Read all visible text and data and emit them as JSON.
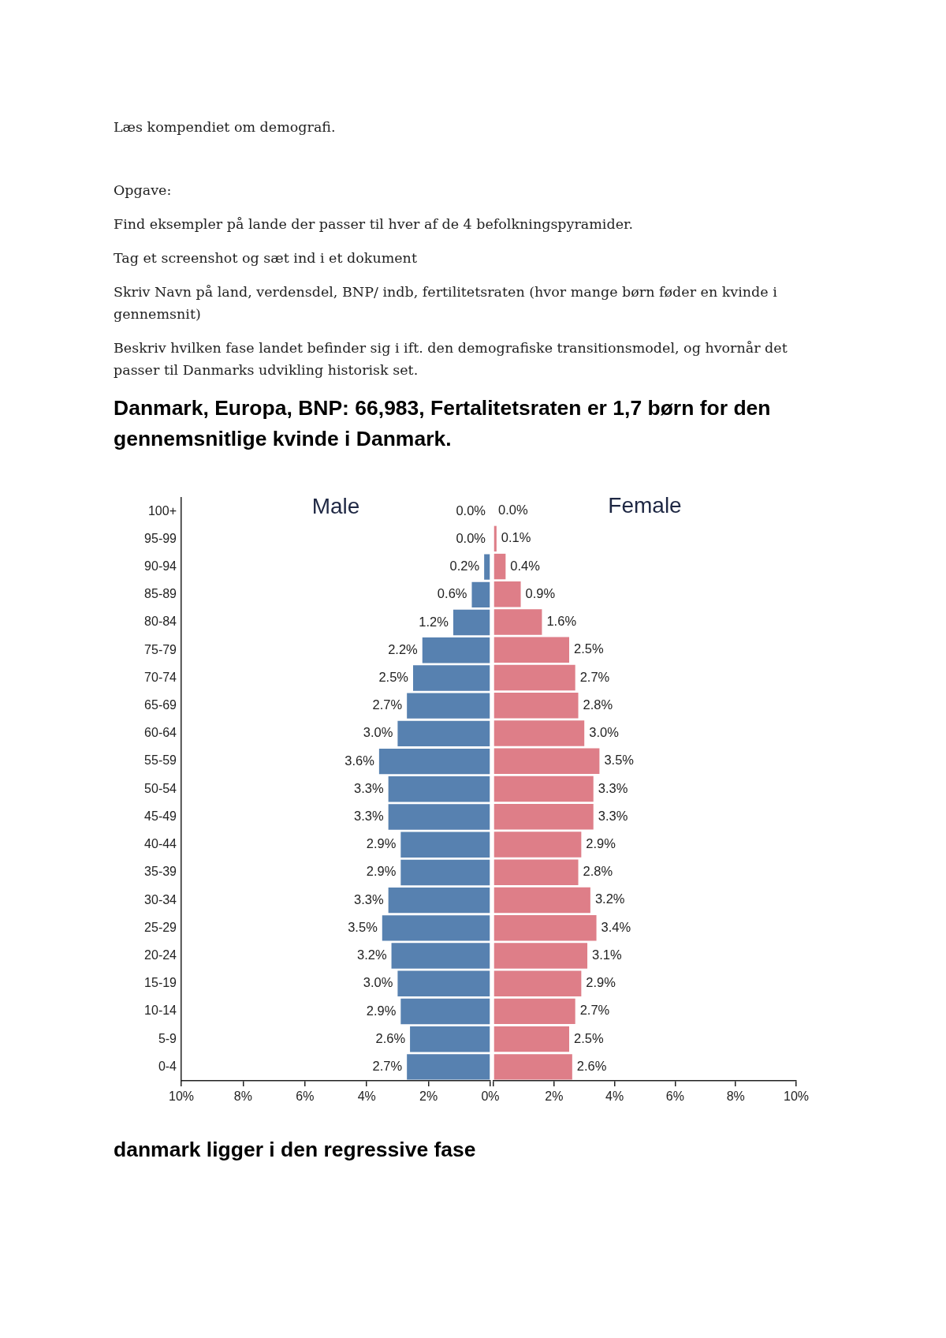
{
  "chart_data": [
    {
      "type": "other",
      "title": "Danmark, Europa, BNP: 66,983, Fertalitetsraten er 1,7 børn for den gennemsnitlige kvinde i Danmark.",
      "annotations": [
        "Læs kompendiet om demografi.",
        "Opgave:",
        "Find eksempler på lande der passer til hver af de 4 befolkningspyramider.",
        "Tag et screenshot og sæt ind i et dokument",
        "Skriv Navn på land, verdensdel, BNP/ indb, fertilitetsraten (hvor mange børn føder en kvinde i gennemsnit)",
        "Beskriv hvilken fase landet befinder sig i ift. den demografiske transitionsmodel, og hvornår det passer til Danmarks udvikling historisk set."
      ]
    },
    {
      "type": "bar",
      "orientation": "horizontal",
      "title": "Male",
      "categories": [
        "100+",
        "95-99",
        "90-94",
        "85-89",
        "80-84",
        "75-79",
        "70-74",
        "65-69",
        "60-64",
        "55-59",
        "50-54",
        "45-49",
        "40-44",
        "35-39",
        "30-34",
        "25-29",
        "20-24",
        "15-19",
        "10-14",
        "5-9",
        "0-4"
      ],
      "series": [
        {
          "color": "#5781b0",
          "values": [
            0,
            0,
            0.2,
            0.6,
            1.2,
            2.2,
            2.5,
            2.7,
            3.0,
            3.6,
            3.3,
            3.3,
            2.9,
            2.9,
            3.3,
            3.5,
            3.2,
            3.0,
            2.9,
            2.6,
            2.7
          ],
          "value_labels": [
            "0.0%",
            "0.0%",
            "0.2%",
            "0.6%",
            "1.2%",
            "2.2%",
            "2.5%",
            "2.7%",
            "3.0%",
            "3.6%",
            "3.3%",
            "3.3%",
            "2.9%",
            "2.9%",
            "3.3%",
            "3.5%",
            "3.2%",
            "3.0%",
            "2.9%",
            "2.6%",
            "2.7%"
          ]
        }
      ],
      "xlim": [
        10,
        0
      ],
      "xticks": [
        {
          "value": 10,
          "label": "10%"
        },
        {
          "value": 8,
          "label": "8%"
        },
        {
          "value": 6,
          "label": "6%"
        },
        {
          "value": 4,
          "label": "4%"
        },
        {
          "value": 2,
          "label": "2%"
        },
        {
          "value": 0,
          "label": "0%"
        }
      ]
    },
    {
      "type": "bar",
      "orientation": "horizontal",
      "title": "Female",
      "tick_labels": "x",
      "categories": [
        "100+",
        "95-99",
        "90-94",
        "85-89",
        "80-84",
        "75-79",
        "70-74",
        "65-69",
        "60-64",
        "55-59",
        "50-54",
        "45-49",
        "40-44",
        "35-39",
        "30-34",
        "25-29",
        "20-24",
        "15-19",
        "10-14",
        "5-9",
        "0-4"
      ],
      "series": [
        {
          "color": "#de7e88",
          "values": [
            0,
            0.1,
            0.4,
            0.9,
            1.6,
            2.5,
            2.7,
            2.8,
            3.0,
            3.5,
            3.3,
            3.3,
            2.9,
            2.8,
            3.2,
            3.4,
            3.1,
            2.9,
            2.7,
            2.5,
            2.6
          ],
          "value_labels": [
            "0.0%",
            "0.1%",
            "0.4%",
            "0.9%",
            "1.6%",
            "2.5%",
            "2.7%",
            "2.8%",
            "3.0%",
            "3.5%",
            "3.3%",
            "3.3%",
            "2.9%",
            "2.8%",
            "3.2%",
            "3.4%",
            "3.1%",
            "2.9%",
            "2.7%",
            "2.5%",
            "2.6%"
          ]
        }
      ],
      "xlim": [
        0,
        10
      ],
      "xticks": [
        {
          "value": 0,
          "label": null
        },
        {
          "value": 2,
          "label": "2%"
        },
        {
          "value": 4,
          "label": "4%"
        },
        {
          "value": 6,
          "label": "6%"
        },
        {
          "value": 8,
          "label": "8%"
        },
        {
          "value": 10,
          "label": "10%"
        }
      ]
    },
    {
      "type": "other",
      "title": "danmark ligger i den regressive fase"
    }
  ]
}
